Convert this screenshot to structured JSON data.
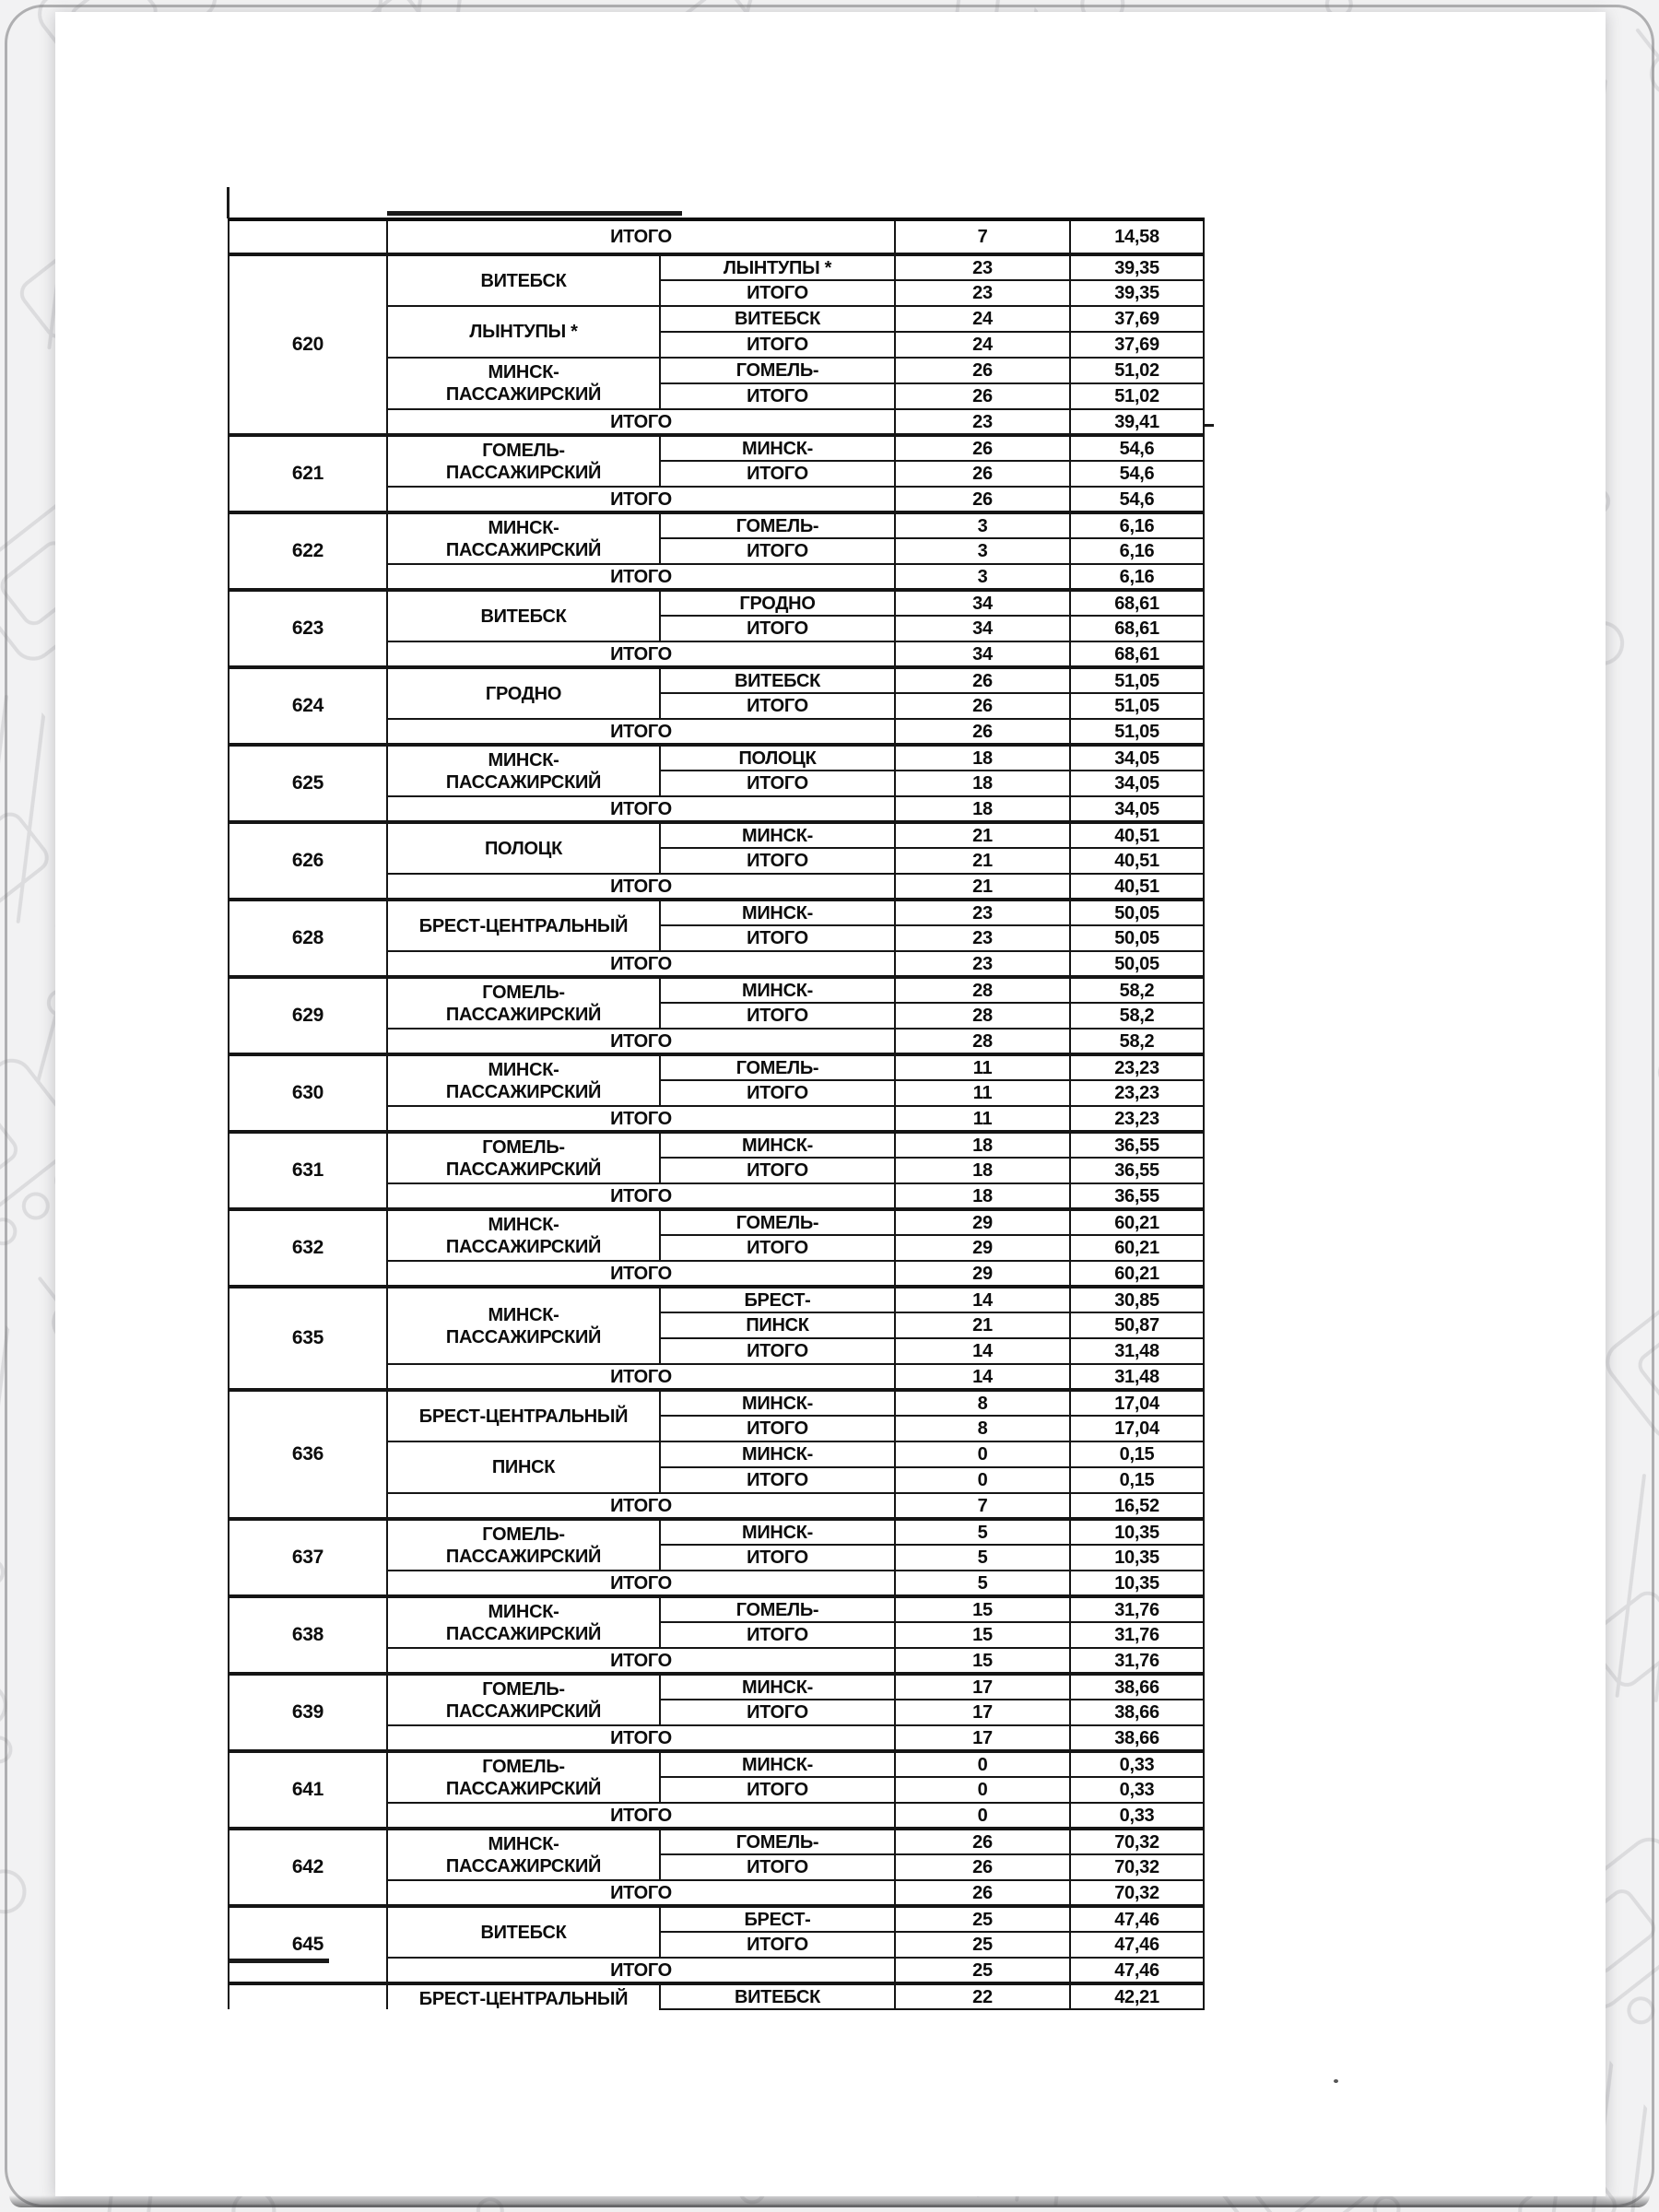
{
  "labels": {
    "itogo": "ИТОГО"
  },
  "colors": {
    "page_background": "#ffffff",
    "canvas_background": "#f2f2f3",
    "pattern_line": "#dcdcde",
    "table_line": "#151515",
    "text": "#0c0c0c"
  },
  "table": {
    "top_partial_row": {
      "label": "ИТОГО",
      "count": "7",
      "value": "14,58"
    },
    "blocks": [
      {
        "train": "620",
        "groups": [
          {
            "origin": "ВИТЕБСК",
            "rows": [
              {
                "dest": "ЛЫНТУПЫ *",
                "count": "23",
                "value": "39,35"
              },
              {
                "dest": "ИТОГО",
                "count": "23",
                "value": "39,35"
              }
            ]
          },
          {
            "origin": "ЛЫНТУПЫ *",
            "rows": [
              {
                "dest": "ВИТЕБСК",
                "count": "24",
                "value": "37,69"
              },
              {
                "dest": "ИТОГО",
                "count": "24",
                "value": "37,69"
              }
            ]
          },
          {
            "origin": "МИНСК-\nПАССАЖИРСКИЙ",
            "rows": [
              {
                "dest": "ГОМЕЛЬ-",
                "count": "26",
                "value": "51,02"
              },
              {
                "dest": "ИТОГО",
                "count": "26",
                "value": "51,02"
              }
            ]
          }
        ],
        "total": {
          "label": "ИТОГО",
          "count": "23",
          "value": "39,41"
        }
      },
      {
        "train": "621",
        "groups": [
          {
            "origin": "ГОМЕЛЬ-\nПАССАЖИРСКИЙ",
            "rows": [
              {
                "dest": "МИНСК-",
                "count": "26",
                "value": "54,6"
              },
              {
                "dest": "ИТОГО",
                "count": "26",
                "value": "54,6"
              }
            ]
          }
        ],
        "total": {
          "label": "ИТОГО",
          "count": "26",
          "value": "54,6"
        }
      },
      {
        "train": "622",
        "groups": [
          {
            "origin": "МИНСК-\nПАССАЖИРСКИЙ",
            "rows": [
              {
                "dest": "ГОМЕЛЬ-",
                "count": "3",
                "value": "6,16"
              },
              {
                "dest": "ИТОГО",
                "count": "3",
                "value": "6,16"
              }
            ]
          }
        ],
        "total": {
          "label": "ИТОГО",
          "count": "3",
          "value": "6,16"
        }
      },
      {
        "train": "623",
        "groups": [
          {
            "origin": "ВИТЕБСК",
            "rows": [
              {
                "dest": "ГРОДНО",
                "count": "34",
                "value": "68,61"
              },
              {
                "dest": "ИТОГО",
                "count": "34",
                "value": "68,61"
              }
            ]
          }
        ],
        "total": {
          "label": "ИТОГО",
          "count": "34",
          "value": "68,61"
        }
      },
      {
        "train": "624",
        "groups": [
          {
            "origin": "ГРОДНО",
            "rows": [
              {
                "dest": "ВИТЕБСК",
                "count": "26",
                "value": "51,05"
              },
              {
                "dest": "ИТОГО",
                "count": "26",
                "value": "51,05"
              }
            ]
          }
        ],
        "total": {
          "label": "ИТОГО",
          "count": "26",
          "value": "51,05"
        }
      },
      {
        "train": "625",
        "groups": [
          {
            "origin": "МИНСК-\nПАССАЖИРСКИЙ",
            "rows": [
              {
                "dest": "ПОЛОЦК",
                "count": "18",
                "value": "34,05"
              },
              {
                "dest": "ИТОГО",
                "count": "18",
                "value": "34,05"
              }
            ]
          }
        ],
        "total": {
          "label": "ИТОГО",
          "count": "18",
          "value": "34,05"
        }
      },
      {
        "train": "626",
        "groups": [
          {
            "origin": "ПОЛОЦК",
            "rows": [
              {
                "dest": "МИНСК-",
                "count": "21",
                "value": "40,51"
              },
              {
                "dest": "ИТОГО",
                "count": "21",
                "value": "40,51"
              }
            ]
          }
        ],
        "total": {
          "label": "ИТОГО",
          "count": "21",
          "value": "40,51"
        }
      },
      {
        "train": "628",
        "groups": [
          {
            "origin": "БРЕСТ-ЦЕНТРАЛЬНЫЙ",
            "rows": [
              {
                "dest": "МИНСК-",
                "count": "23",
                "value": "50,05"
              },
              {
                "dest": "ИТОГО",
                "count": "23",
                "value": "50,05"
              }
            ]
          }
        ],
        "total": {
          "label": "ИТОГО",
          "count": "23",
          "value": "50,05"
        }
      },
      {
        "train": "629",
        "groups": [
          {
            "origin": "ГОМЕЛЬ-\nПАССАЖИРСКИЙ",
            "rows": [
              {
                "dest": "МИНСК-",
                "count": "28",
                "value": "58,2"
              },
              {
                "dest": "ИТОГО",
                "count": "28",
                "value": "58,2"
              }
            ]
          }
        ],
        "total": {
          "label": "ИТОГО",
          "count": "28",
          "value": "58,2"
        }
      },
      {
        "train": "630",
        "groups": [
          {
            "origin": "МИНСК-\nПАССАЖИРСКИЙ",
            "rows": [
              {
                "dest": "ГОМЕЛЬ-",
                "count": "11",
                "value": "23,23"
              },
              {
                "dest": "ИТОГО",
                "count": "11",
                "value": "23,23"
              }
            ]
          }
        ],
        "total": {
          "label": "ИТОГО",
          "count": "11",
          "value": "23,23"
        }
      },
      {
        "train": "631",
        "groups": [
          {
            "origin": "ГОМЕЛЬ-\nПАССАЖИРСКИЙ",
            "rows": [
              {
                "dest": "МИНСК-",
                "count": "18",
                "value": "36,55"
              },
              {
                "dest": "ИТОГО",
                "count": "18",
                "value": "36,55"
              }
            ]
          }
        ],
        "total": {
          "label": "ИТОГО",
          "count": "18",
          "value": "36,55"
        }
      },
      {
        "train": "632",
        "groups": [
          {
            "origin": "МИНСК-\nПАССАЖИРСКИЙ",
            "rows": [
              {
                "dest": "ГОМЕЛЬ-",
                "count": "29",
                "value": "60,21"
              },
              {
                "dest": "ИТОГО",
                "count": "29",
                "value": "60,21"
              }
            ]
          }
        ],
        "total": {
          "label": "ИТОГО",
          "count": "29",
          "value": "60,21"
        }
      },
      {
        "train": "635",
        "groups": [
          {
            "origin": "МИНСК-\nПАССАЖИРСКИЙ",
            "rows": [
              {
                "dest": "БРЕСТ-",
                "count": "14",
                "value": "30,85"
              },
              {
                "dest": "ПИНСК",
                "count": "21",
                "value": "50,87"
              },
              {
                "dest": "ИТОГО",
                "count": "14",
                "value": "31,48"
              }
            ]
          }
        ],
        "total": {
          "label": "ИТОГО",
          "count": "14",
          "value": "31,48"
        }
      },
      {
        "train": "636",
        "groups": [
          {
            "origin": "БРЕСТ-ЦЕНТРАЛЬНЫЙ",
            "rows": [
              {
                "dest": "МИНСК-",
                "count": "8",
                "value": "17,04"
              },
              {
                "dest": "ИТОГО",
                "count": "8",
                "value": "17,04"
              }
            ]
          },
          {
            "origin": "ПИНСК",
            "rows": [
              {
                "dest": "МИНСК-",
                "count": "0",
                "value": "0,15"
              },
              {
                "dest": "ИТОГО",
                "count": "0",
                "value": "0,15"
              }
            ]
          }
        ],
        "total": {
          "label": "ИТОГО",
          "count": "7",
          "value": "16,52"
        }
      },
      {
        "train": "637",
        "groups": [
          {
            "origin": "ГОМЕЛЬ-\nПАССАЖИРСКИЙ",
            "rows": [
              {
                "dest": "МИНСК-",
                "count": "5",
                "value": "10,35"
              },
              {
                "dest": "ИТОГО",
                "count": "5",
                "value": "10,35"
              }
            ]
          }
        ],
        "total": {
          "label": "ИТОГО",
          "count": "5",
          "value": "10,35"
        }
      },
      {
        "train": "638",
        "groups": [
          {
            "origin": "МИНСК-\nПАССАЖИРСКИЙ",
            "rows": [
              {
                "dest": "ГОМЕЛЬ-",
                "count": "15",
                "value": "31,76"
              },
              {
                "dest": "ИТОГО",
                "count": "15",
                "value": "31,76"
              }
            ]
          }
        ],
        "total": {
          "label": "ИТОГО",
          "count": "15",
          "value": "31,76"
        }
      },
      {
        "train": "639",
        "groups": [
          {
            "origin": "ГОМЕЛЬ-\nПАССАЖИРСКИЙ",
            "rows": [
              {
                "dest": "МИНСК-",
                "count": "17",
                "value": "38,66"
              },
              {
                "dest": "ИТОГО",
                "count": "17",
                "value": "38,66"
              }
            ]
          }
        ],
        "total": {
          "label": "ИТОГО",
          "count": "17",
          "value": "38,66"
        }
      },
      {
        "train": "641",
        "groups": [
          {
            "origin": "ГОМЕЛЬ-\nПАССАЖИРСКИЙ",
            "rows": [
              {
                "dest": "МИНСК-",
                "count": "0",
                "value": "0,33"
              },
              {
                "dest": "ИТОГО",
                "count": "0",
                "value": "0,33"
              }
            ]
          }
        ],
        "total": {
          "label": "ИТОГО",
          "count": "0",
          "value": "0,33"
        }
      },
      {
        "train": "642",
        "groups": [
          {
            "origin": "МИНСК-\nПАССАЖИРСКИЙ",
            "rows": [
              {
                "dest": "ГОМЕЛЬ-",
                "count": "26",
                "value": "70,32"
              },
              {
                "dest": "ИТОГО",
                "count": "26",
                "value": "70,32"
              }
            ]
          }
        ],
        "total": {
          "label": "ИТОГО",
          "count": "26",
          "value": "70,32"
        }
      },
      {
        "train": "645",
        "groups": [
          {
            "origin": "ВИТЕБСК",
            "rows": [
              {
                "dest": "БРЕСТ-",
                "count": "25",
                "value": "47,46"
              },
              {
                "dest": "ИТОГО",
                "count": "25",
                "value": "47,46"
              }
            ]
          }
        ],
        "total": {
          "label": "ИТОГО",
          "count": "25",
          "value": "47,46"
        }
      }
    ],
    "bottom_partial_block": {
      "origin": "БРЕСТ-ЦЕНТРАЛЬНЫЙ",
      "row": {
        "dest": "ВИТЕБСК",
        "count": "22",
        "value": "42,21"
      }
    }
  }
}
